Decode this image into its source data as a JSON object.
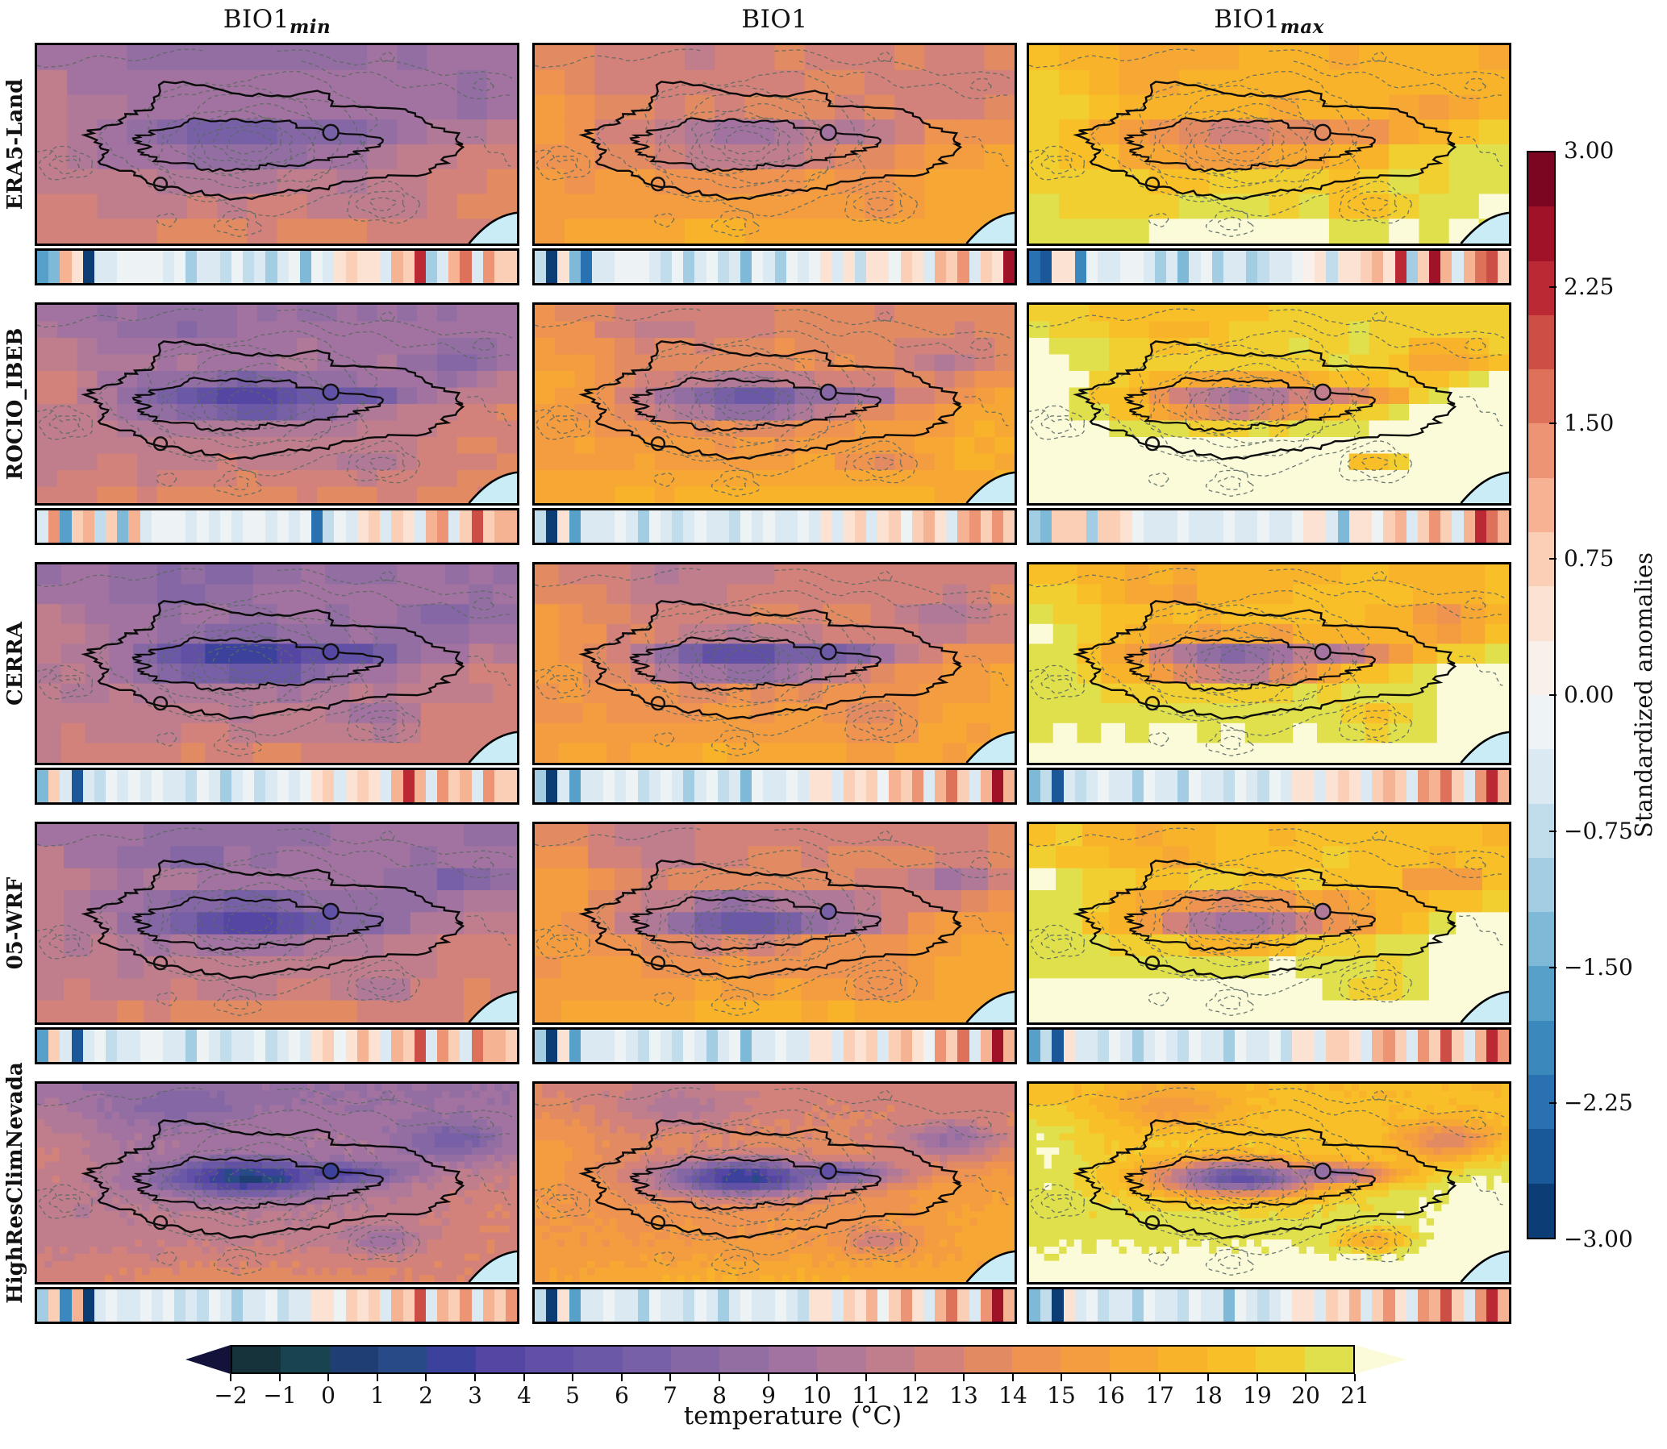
{
  "columns": [
    {
      "main": "BIO1",
      "sub": "min"
    },
    {
      "main": "BIO1",
      "sub": ""
    },
    {
      "main": "BIO1",
      "sub": "max"
    }
  ],
  "rows": [
    {
      "label": "ERA5-Land"
    },
    {
      "label": "ROCIO_IBEB"
    },
    {
      "label": "CERRA"
    },
    {
      "label": "05-WRF"
    },
    {
      "label": "HighResClimNevada"
    }
  ],
  "anomaly_colorbar": {
    "label": "Standardized anomalies",
    "ticks": [
      "3.00",
      "2.25",
      "1.50",
      "0.75",
      "0.00",
      "−0.75",
      "−1.50",
      "−2.25",
      "−3.00"
    ],
    "vmin": -3,
    "vmax": 3,
    "n_segments": 20
  },
  "temperature_colorbar": {
    "label": "temperature (°C)",
    "ticks": [
      "−2",
      "−1",
      "0",
      "1",
      "2",
      "3",
      "4",
      "5",
      "6",
      "7",
      "8",
      "9",
      "10",
      "11",
      "12",
      "13",
      "14",
      "15",
      "16",
      "17",
      "18",
      "19",
      "20",
      "21"
    ],
    "vmin": -2,
    "vmax": 21,
    "extend": "both"
  },
  "chart_data": {
    "type": "heatmap",
    "description": "5x3 grid of temperature maps (datasets x BIO1 variants) over Sierra Nevada with elevation contours, park boundary outlines, two station markers, coastline in SE corner; a standardized-anomaly stripe series under each map.",
    "datasets": [
      "ERA5-Land",
      "ROCIO_IBEB",
      "CERRA",
      "05-WRF",
      "HighResClimNevada"
    ],
    "variables": [
      "BIO1_min",
      "BIO1",
      "BIO1_max"
    ],
    "temperature_colormap_segments": [
      "#16333c",
      "#18444f",
      "#1e3e74",
      "#284a86",
      "#3c429c",
      "#5646a4",
      "#6150a6",
      "#6b58a6",
      "#7760a6",
      "#8567a5",
      "#936ea3",
      "#a273a0",
      "#b17998",
      "#c07e8c",
      "#d2827b",
      "#e28b62",
      "#ee9350",
      "#f49d40",
      "#f7a834",
      "#f9b32a",
      "#f8bf28",
      "#f2cf31",
      "#e0e04d"
    ],
    "temperature_under_color": "#12123a",
    "temperature_over_color": "#fbfbda",
    "anomaly_colormap_stops": [
      [
        -3,
        "#053061"
      ],
      [
        -2.4,
        "#2166ac"
      ],
      [
        -1.8,
        "#4393c3"
      ],
      [
        -1.2,
        "#92c5de"
      ],
      [
        -0.6,
        "#d1e5f0"
      ],
      [
        0,
        "#f7f7f7"
      ],
      [
        0.6,
        "#fddbc7"
      ],
      [
        1.2,
        "#f4a582"
      ],
      [
        1.8,
        "#d6604d"
      ],
      [
        2.4,
        "#b2182b"
      ],
      [
        3,
        "#67001f"
      ]
    ],
    "sea_color": "#c9ecf6",
    "field_model": {
      "col_base": [
        10.3,
        14.0,
        19.0
      ],
      "row_amp": [
        4.0,
        7.5,
        8.2,
        7.6,
        9.8
      ],
      "col_amp_mul": [
        1.0,
        1.25,
        1.55
      ],
      "row_col_offset": [
        [
          0,
          0,
          -0.6
        ],
        [
          0.2,
          0.5,
          1.6
        ],
        [
          -0.3,
          -0.2,
          0.3
        ],
        [
          0,
          0,
          0.6
        ],
        [
          0,
          -0.2,
          0.4
        ]
      ],
      "grids": [
        [
          16,
          8
        ],
        [
          24,
          12
        ],
        [
          20,
          10
        ],
        [
          18,
          9
        ],
        [
          64,
          28
        ]
      ],
      "sigma_scale": [
        1.15,
        1.0,
        1.0,
        1.0,
        0.82
      ],
      "noise": [
        0.45,
        0.5,
        0.5,
        0.5,
        0.35
      ]
    },
    "strips": {
      "r0c0": [
        -1.6,
        -1.4,
        0.9,
        0.5,
        -2.7,
        -0.5,
        -0.4,
        -0.3,
        -0.2,
        -0.1,
        -0.3,
        -0.6,
        -0.3,
        -1.0,
        -0.6,
        -0.4,
        -0.9,
        -0.3,
        -0.8,
        -0.5,
        -1.1,
        -0.4,
        -0.2,
        -1.5,
        -0.3,
        -0.6,
        0.4,
        0.7,
        0.5,
        0.3,
        -0.5,
        0.9,
        0.6,
        2.1,
        -1.2,
        -0.4,
        1.1,
        1.6,
        -0.6,
        1.3,
        0.8,
        0.6
      ],
      "r0c1": [
        -0.9,
        -2.9,
        0.4,
        -1.5,
        -2.3,
        -0.4,
        -0.5,
        -0.3,
        -0.3,
        -0.2,
        -0.4,
        -0.8,
        -0.3,
        -1.1,
        -0.5,
        -0.3,
        -0.9,
        -0.5,
        -1.4,
        -0.3,
        -0.6,
        -1.0,
        -0.3,
        -0.5,
        -0.2,
        0.3,
        -0.4,
        0.4,
        -0.8,
        0.5,
        0.4,
        -0.3,
        0.7,
        0.5,
        -0.5,
        0.9,
        0.6,
        1.3,
        -0.4,
        0.8,
        0.5,
        2.6
      ],
      "r0c2": [
        -2.2,
        -2.6,
        0.5,
        0.4,
        -2.1,
        -0.3,
        -0.4,
        -0.5,
        -0.3,
        -0.2,
        -0.5,
        -1.1,
        -0.5,
        -1.3,
        -0.6,
        -0.3,
        -1.0,
        -0.4,
        -0.4,
        -1.2,
        -0.7,
        -0.4,
        -0.6,
        -0.3,
        0.2,
        0.4,
        -0.7,
        0.4,
        0.3,
        0.8,
        1.0,
        0.5,
        2.2,
        -1.0,
        0.6,
        2.4,
        1.1,
        -0.5,
        0.9,
        1.5,
        2.0,
        0.8
      ],
      "r1c0": [
        -0.6,
        1.2,
        -1.8,
        0.8,
        1.0,
        -0.9,
        0.6,
        -1.3,
        0.9,
        -0.4,
        -0.3,
        -0.2,
        -0.3,
        -0.5,
        -0.2,
        -0.4,
        -0.3,
        -0.6,
        -0.3,
        -0.2,
        -0.4,
        -0.3,
        -0.5,
        -0.2,
        -2.4,
        -0.8,
        -0.3,
        -0.5,
        0.4,
        0.6,
        -0.4,
        0.8,
        0.5,
        -0.6,
        0.9,
        1.3,
        -0.5,
        0.7,
        1.8,
        0.6,
        1.1,
        0.9
      ],
      "r1c1": [
        -0.7,
        -3.0,
        0.4,
        -1.6,
        -0.5,
        -0.4,
        -0.6,
        -0.3,
        -0.4,
        -1.2,
        -0.3,
        -0.5,
        -0.9,
        -0.4,
        -0.3,
        -0.6,
        -0.4,
        -0.8,
        -0.3,
        -0.5,
        -0.2,
        -0.4,
        -0.6,
        -0.3,
        -0.4,
        0.3,
        -0.5,
        0.4,
        0.6,
        -0.4,
        0.5,
        0.8,
        -0.3,
        0.6,
        1.0,
        0.5,
        -0.4,
        0.9,
        1.4,
        0.7,
        1.2,
        0.8
      ],
      "r1c2": [
        -1.2,
        -1.5,
        0.8,
        0.7,
        0.7,
        -1.1,
        0.6,
        0.6,
        0.5,
        -0.3,
        -0.4,
        -0.5,
        -0.4,
        -0.3,
        -0.5,
        -0.6,
        -0.4,
        -0.3,
        -0.4,
        -0.5,
        -0.3,
        -0.4,
        -0.6,
        -0.3,
        0.4,
        0.3,
        -0.4,
        -1.5,
        0.4,
        0.5,
        -0.3,
        0.6,
        1.0,
        -0.4,
        0.8,
        1.3,
        0.6,
        -0.5,
        1.1,
        2.2,
        1.5,
        0.9
      ],
      "r2c0": [
        -1.3,
        0.7,
        -0.5,
        -2.5,
        -0.4,
        -0.8,
        -0.3,
        -0.5,
        -0.2,
        -0.4,
        -0.3,
        -0.6,
        -0.4,
        -0.9,
        -0.3,
        -0.5,
        -1.1,
        -0.4,
        -0.3,
        -0.7,
        -0.4,
        -0.2,
        -0.5,
        -0.3,
        0.4,
        0.6,
        -0.4,
        0.5,
        0.8,
        0.4,
        -0.5,
        0.9,
        2.3,
        1.1,
        -0.6,
        1.4,
        0.7,
        1.0,
        -0.4,
        1.2,
        0.8,
        0.6
      ],
      "r2c1": [
        -1.1,
        -2.8,
        -0.5,
        -1.7,
        -0.4,
        -0.6,
        -0.3,
        -0.5,
        -0.3,
        -0.8,
        -0.4,
        -0.3,
        -0.6,
        -1.0,
        -0.4,
        -0.3,
        -0.9,
        -0.5,
        -1.4,
        -0.3,
        -0.6,
        -0.4,
        -0.3,
        -0.5,
        0.3,
        0.5,
        -0.4,
        0.6,
        0.4,
        0.8,
        -0.3,
        0.9,
        0.6,
        1.2,
        -0.5,
        1.0,
        1.5,
        0.7,
        -0.4,
        1.1,
        2.4,
        0.9
      ],
      "r2c2": [
        -1.4,
        -0.7,
        -2.6,
        -0.5,
        -0.9,
        -0.4,
        -0.3,
        -0.6,
        -0.4,
        -1.0,
        -0.3,
        -0.5,
        -0.4,
        -1.2,
        -0.3,
        -0.6,
        -0.4,
        -0.8,
        -0.3,
        -0.5,
        -0.7,
        -0.3,
        -0.4,
        0.3,
        0.5,
        -0.6,
        0.4,
        0.7,
        0.5,
        -0.4,
        0.8,
        1.1,
        0.6,
        -0.5,
        1.3,
        0.9,
        1.7,
        0.7,
        -0.4,
        1.2,
        2.2,
        1.0
      ],
      "r3c0": [
        -1.7,
        0.8,
        -0.6,
        -2.6,
        -0.4,
        -0.3,
        -0.7,
        -0.4,
        -0.5,
        -0.3,
        -0.2,
        -0.6,
        -0.4,
        -1.0,
        -0.3,
        -0.5,
        -0.9,
        -0.4,
        -0.6,
        -0.3,
        -0.8,
        -0.4,
        -0.3,
        -0.5,
        0.4,
        0.6,
        -0.3,
        0.5,
        0.9,
        0.4,
        -0.6,
        1.0,
        0.7,
        2.0,
        -0.5,
        1.2,
        0.8,
        -0.4,
        1.5,
        0.9,
        1.1,
        0.7
      ],
      "r3c1": [
        -1.0,
        -2.9,
        0.3,
        -1.8,
        -0.5,
        -0.4,
        -0.6,
        -0.3,
        -0.5,
        -0.9,
        -0.3,
        -0.4,
        -0.7,
        -0.3,
        -0.5,
        -1.1,
        -0.4,
        -0.3,
        -1.5,
        -0.4,
        -0.6,
        -0.3,
        -0.4,
        -0.5,
        0.3,
        0.4,
        -0.5,
        0.6,
        0.4,
        0.8,
        -0.4,
        0.7,
        1.1,
        0.5,
        -0.3,
        1.3,
        0.8,
        1.6,
        -0.5,
        1.0,
        2.5,
        0.9
      ],
      "r3c2": [
        -1.6,
        -0.9,
        -2.5,
        0.4,
        -0.6,
        -0.4,
        -0.8,
        -0.3,
        -0.5,
        -1.2,
        -0.4,
        -0.3,
        -0.6,
        -0.9,
        -0.3,
        -0.5,
        -0.4,
        -1.0,
        -0.3,
        -0.6,
        -0.4,
        -0.3,
        -0.7,
        0.3,
        0.5,
        -0.4,
        0.6,
        0.8,
        0.4,
        -0.5,
        0.9,
        1.2,
        0.6,
        -0.4,
        1.4,
        0.8,
        1.8,
        0.7,
        -0.5,
        1.1,
        2.3,
        1.2
      ],
      "r4c0": [
        -1.2,
        0.6,
        -1.9,
        0.9,
        -2.8,
        -0.5,
        -0.3,
        -0.6,
        -0.4,
        -0.2,
        -0.5,
        -0.3,
        -0.7,
        -0.4,
        -0.9,
        -0.3,
        -0.5,
        -1.0,
        -0.4,
        -0.6,
        -0.3,
        -0.8,
        -0.4,
        -0.5,
        0.4,
        0.5,
        -0.3,
        0.7,
        0.4,
        0.8,
        -0.5,
        0.9,
        0.6,
        1.9,
        -0.4,
        1.1,
        0.7,
        1.4,
        -0.6,
        1.0,
        0.8,
        1.2
      ],
      "r4c1": [
        -0.8,
        -3.0,
        0.4,
        -1.7,
        -0.4,
        -0.6,
        -0.3,
        -0.5,
        -0.4,
        -1.0,
        -0.3,
        -0.6,
        -0.4,
        -0.8,
        -0.3,
        -0.5,
        -1.2,
        -0.4,
        -0.3,
        -0.6,
        -0.5,
        -0.3,
        -0.4,
        -0.7,
        0.3,
        0.5,
        -0.4,
        0.6,
        0.4,
        0.9,
        -0.3,
        0.8,
        1.2,
        0.5,
        -0.5,
        1.0,
        1.5,
        0.8,
        -0.4,
        1.3,
        2.4,
        1.0
      ],
      "r4c2": [
        -1.3,
        -0.8,
        -2.7,
        0.5,
        -0.5,
        -0.3,
        -0.7,
        -0.4,
        -0.6,
        -1.1,
        -0.3,
        -0.5,
        -0.4,
        -0.9,
        -0.3,
        -0.6,
        -0.4,
        -1.3,
        -0.3,
        -0.5,
        -0.7,
        -0.4,
        -0.3,
        0.4,
        0.5,
        -0.5,
        0.7,
        0.4,
        0.9,
        -0.4,
        0.8,
        1.3,
        0.5,
        -0.6,
        1.2,
        0.9,
        1.9,
        0.8,
        -0.4,
        1.4,
        2.1,
        1.1
      ]
    }
  }
}
